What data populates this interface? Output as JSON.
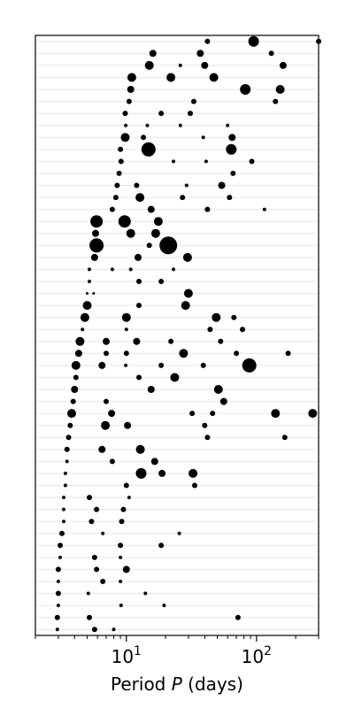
{
  "chart_data": {
    "type": "scatter",
    "xlabel_prefix": "Period ",
    "xlabel_var": "P",
    "xlabel_suffix": " (days)",
    "x_scale": "log",
    "xlim": [
      2.0,
      300
    ],
    "row_count": 50,
    "grid": "horizontal-rows",
    "x_ticks": [
      {
        "value": 10,
        "base": "10",
        "exp": "1"
      },
      {
        "value": 100,
        "base": "10",
        "exp": "2"
      }
    ],
    "points": [
      {
        "x": 42,
        "row": 1,
        "size": 3
      },
      {
        "x": 95,
        "row": 1,
        "size": 6
      },
      {
        "x": 300,
        "row": 1,
        "size": 3
      },
      {
        "x": 16,
        "row": 2,
        "size": 4
      },
      {
        "x": 37,
        "row": 2,
        "size": 4
      },
      {
        "x": 130,
        "row": 2,
        "size": 3
      },
      {
        "x": 15,
        "row": 3,
        "size": 5
      },
      {
        "x": 26,
        "row": 3,
        "size": 2
      },
      {
        "x": 40,
        "row": 3,
        "size": 4
      },
      {
        "x": 160,
        "row": 3,
        "size": 4
      },
      {
        "x": 11,
        "row": 4,
        "size": 5
      },
      {
        "x": 22,
        "row": 4,
        "size": 5
      },
      {
        "x": 47,
        "row": 4,
        "size": 5
      },
      {
        "x": 10.8,
        "row": 5,
        "size": 4
      },
      {
        "x": 82,
        "row": 5,
        "size": 6
      },
      {
        "x": 152,
        "row": 5,
        "size": 5
      },
      {
        "x": 10.5,
        "row": 6,
        "size": 3
      },
      {
        "x": 33,
        "row": 6,
        "size": 3
      },
      {
        "x": 140,
        "row": 6,
        "size": 3
      },
      {
        "x": 9.8,
        "row": 7,
        "size": 3
      },
      {
        "x": 18.5,
        "row": 7,
        "size": 3
      },
      {
        "x": 31,
        "row": 7,
        "size": 3
      },
      {
        "x": 9.9,
        "row": 8,
        "size": 2
      },
      {
        "x": 14.5,
        "row": 8,
        "size": 2
      },
      {
        "x": 26,
        "row": 8,
        "size": 2
      },
      {
        "x": 60,
        "row": 8,
        "size": 2
      },
      {
        "x": 9.8,
        "row": 9,
        "size": 5
      },
      {
        "x": 13.5,
        "row": 9,
        "size": 3
      },
      {
        "x": 39,
        "row": 9,
        "size": 2
      },
      {
        "x": 65,
        "row": 9,
        "size": 4
      },
      {
        "x": 9.0,
        "row": 10,
        "size": 3
      },
      {
        "x": 14.8,
        "row": 10,
        "size": 8
      },
      {
        "x": 64,
        "row": 10,
        "size": 6
      },
      {
        "x": 9.1,
        "row": 11,
        "size": 3
      },
      {
        "x": 23,
        "row": 11,
        "size": 2
      },
      {
        "x": 41,
        "row": 11,
        "size": 2
      },
      {
        "x": 92,
        "row": 11,
        "size": 3
      },
      {
        "x": 8.8,
        "row": 12,
        "size": 3
      },
      {
        "x": 66,
        "row": 12,
        "size": 3
      },
      {
        "x": 8.5,
        "row": 13,
        "size": 3
      },
      {
        "x": 12,
        "row": 13,
        "size": 3
      },
      {
        "x": 29,
        "row": 13,
        "size": 2
      },
      {
        "x": 54,
        "row": 13,
        "size": 4
      },
      {
        "x": 8.3,
        "row": 14,
        "size": 3
      },
      {
        "x": 12.7,
        "row": 14,
        "size": 5
      },
      {
        "x": 27,
        "row": 14,
        "size": 3
      },
      {
        "x": 62,
        "row": 14,
        "size": 3
      },
      {
        "x": 7.8,
        "row": 15,
        "size": 3
      },
      {
        "x": 15.5,
        "row": 15,
        "size": 4
      },
      {
        "x": 42,
        "row": 15,
        "size": 3
      },
      {
        "x": 115,
        "row": 15,
        "size": 2
      },
      {
        "x": 5.9,
        "row": 16,
        "size": 7
      },
      {
        "x": 9.7,
        "row": 16,
        "size": 7
      },
      {
        "x": 17.6,
        "row": 16,
        "size": 5
      },
      {
        "x": 5.8,
        "row": 17,
        "size": 4
      },
      {
        "x": 10.8,
        "row": 17,
        "size": 5
      },
      {
        "x": 16.8,
        "row": 17,
        "size": 5
      },
      {
        "x": 5.9,
        "row": 18,
        "size": 8
      },
      {
        "x": 15,
        "row": 18,
        "size": 3
      },
      {
        "x": 21,
        "row": 18,
        "size": 10
      },
      {
        "x": 5.7,
        "row": 19,
        "size": 4
      },
      {
        "x": 12.3,
        "row": 19,
        "size": 4
      },
      {
        "x": 29.5,
        "row": 19,
        "size": 5
      },
      {
        "x": 5.2,
        "row": 20,
        "size": 2
      },
      {
        "x": 7.8,
        "row": 20,
        "size": 2
      },
      {
        "x": 10.8,
        "row": 20,
        "size": 2
      },
      {
        "x": 23,
        "row": 20,
        "size": 2
      },
      {
        "x": 5.2,
        "row": 21,
        "size": 2
      },
      {
        "x": 12.5,
        "row": 21,
        "size": 3
      },
      {
        "x": 18.5,
        "row": 21,
        "size": 3
      },
      {
        "x": 5.0,
        "row": 22,
        "size": 1.5
      },
      {
        "x": 5.6,
        "row": 22,
        "size": 1.5
      },
      {
        "x": 30,
        "row": 22,
        "size": 5
      },
      {
        "x": 5.0,
        "row": 23,
        "size": 5
      },
      {
        "x": 12.5,
        "row": 23,
        "size": 3
      },
      {
        "x": 28.5,
        "row": 23,
        "size": 5
      },
      {
        "x": 4.8,
        "row": 24,
        "size": 5
      },
      {
        "x": 10,
        "row": 24,
        "size": 5
      },
      {
        "x": 49,
        "row": 24,
        "size": 5
      },
      {
        "x": 67,
        "row": 24,
        "size": 3
      },
      {
        "x": 4.6,
        "row": 25,
        "size": 2
      },
      {
        "x": 10,
        "row": 25,
        "size": 2
      },
      {
        "x": 44,
        "row": 25,
        "size": 3
      },
      {
        "x": 78,
        "row": 25,
        "size": 3
      },
      {
        "x": 4.4,
        "row": 26,
        "size": 5
      },
      {
        "x": 7.0,
        "row": 26,
        "size": 4
      },
      {
        "x": 12,
        "row": 26,
        "size": 4
      },
      {
        "x": 22,
        "row": 26,
        "size": 3
      },
      {
        "x": 53,
        "row": 26,
        "size": 3
      },
      {
        "x": 4.3,
        "row": 27,
        "size": 4
      },
      {
        "x": 7.0,
        "row": 27,
        "size": 3
      },
      {
        "x": 10,
        "row": 27,
        "size": 3
      },
      {
        "x": 27.5,
        "row": 27,
        "size": 5
      },
      {
        "x": 70,
        "row": 27,
        "size": 3
      },
      {
        "x": 175,
        "row": 27,
        "size": 3
      },
      {
        "x": 4.1,
        "row": 28,
        "size": 5
      },
      {
        "x": 6.5,
        "row": 28,
        "size": 4
      },
      {
        "x": 9.9,
        "row": 28,
        "size": 2
      },
      {
        "x": 18.5,
        "row": 28,
        "size": 3
      },
      {
        "x": 39,
        "row": 28,
        "size": 3
      },
      {
        "x": 88,
        "row": 28,
        "size": 8
      },
      {
        "x": 4.1,
        "row": 29,
        "size": 3
      },
      {
        "x": 12.5,
        "row": 29,
        "size": 3
      },
      {
        "x": 23.5,
        "row": 29,
        "size": 5
      },
      {
        "x": 4.0,
        "row": 30,
        "size": 4
      },
      {
        "x": 15.5,
        "row": 30,
        "size": 4
      },
      {
        "x": 51,
        "row": 30,
        "size": 5
      },
      {
        "x": 3.9,
        "row": 31,
        "size": 3
      },
      {
        "x": 7.0,
        "row": 31,
        "size": 3
      },
      {
        "x": 56,
        "row": 31,
        "size": 4
      },
      {
        "x": 3.8,
        "row": 32,
        "size": 5
      },
      {
        "x": 7.7,
        "row": 32,
        "size": 4
      },
      {
        "x": 32,
        "row": 32,
        "size": 3
      },
      {
        "x": 46,
        "row": 32,
        "size": 3
      },
      {
        "x": 140,
        "row": 32,
        "size": 5
      },
      {
        "x": 270,
        "row": 32,
        "size": 5
      },
      {
        "x": 3.7,
        "row": 33,
        "size": 3
      },
      {
        "x": 6.9,
        "row": 33,
        "size": 5
      },
      {
        "x": 10.2,
        "row": 33,
        "size": 4
      },
      {
        "x": 40,
        "row": 33,
        "size": 3
      },
      {
        "x": 3.6,
        "row": 34,
        "size": 3
      },
      {
        "x": 42,
        "row": 34,
        "size": 3
      },
      {
        "x": 165,
        "row": 34,
        "size": 3
      },
      {
        "x": 3.5,
        "row": 35,
        "size": 3
      },
      {
        "x": 6.5,
        "row": 35,
        "size": 4
      },
      {
        "x": 12.8,
        "row": 35,
        "size": 5
      },
      {
        "x": 3.5,
        "row": 36,
        "size": 2
      },
      {
        "x": 7.8,
        "row": 36,
        "size": 3
      },
      {
        "x": 16.5,
        "row": 36,
        "size": 4
      },
      {
        "x": 3.4,
        "row": 37,
        "size": 2
      },
      {
        "x": 13,
        "row": 37,
        "size": 6
      },
      {
        "x": 18.8,
        "row": 37,
        "size": 4
      },
      {
        "x": 32.5,
        "row": 37,
        "size": 5
      },
      {
        "x": 3.4,
        "row": 38,
        "size": 2
      },
      {
        "x": 10,
        "row": 38,
        "size": 3
      },
      {
        "x": 33.5,
        "row": 38,
        "size": 3
      },
      {
        "x": 3.3,
        "row": 39,
        "size": 2
      },
      {
        "x": 5.2,
        "row": 39,
        "size": 3
      },
      {
        "x": 10.5,
        "row": 39,
        "size": 2
      },
      {
        "x": 3.3,
        "row": 40,
        "size": 2
      },
      {
        "x": 5.9,
        "row": 40,
        "size": 3
      },
      {
        "x": 9.5,
        "row": 40,
        "size": 3
      },
      {
        "x": 3.3,
        "row": 41,
        "size": 2
      },
      {
        "x": 5.4,
        "row": 41,
        "size": 3
      },
      {
        "x": 9.2,
        "row": 41,
        "size": 3
      },
      {
        "x": 3.2,
        "row": 42,
        "size": 3
      },
      {
        "x": 6.6,
        "row": 42,
        "size": 2
      },
      {
        "x": 25.5,
        "row": 42,
        "size": 2
      },
      {
        "x": 3.1,
        "row": 43,
        "size": 3
      },
      {
        "x": 9.0,
        "row": 43,
        "size": 3
      },
      {
        "x": 18.5,
        "row": 43,
        "size": 3
      },
      {
        "x": 3.1,
        "row": 44,
        "size": 2
      },
      {
        "x": 5.7,
        "row": 44,
        "size": 3
      },
      {
        "x": 9.0,
        "row": 44,
        "size": 2
      },
      {
        "x": 3.0,
        "row": 45,
        "size": 3
      },
      {
        "x": 5.9,
        "row": 45,
        "size": 3
      },
      {
        "x": 10,
        "row": 45,
        "size": 4
      },
      {
        "x": 3.0,
        "row": 46,
        "size": 2
      },
      {
        "x": 6.6,
        "row": 46,
        "size": 3
      },
      {
        "x": 9.0,
        "row": 46,
        "size": 2
      },
      {
        "x": 3.0,
        "row": 47,
        "size": 3
      },
      {
        "x": 5.1,
        "row": 47,
        "size": 2
      },
      {
        "x": 14,
        "row": 47,
        "size": 2
      },
      {
        "x": 3.0,
        "row": 48,
        "size": 2
      },
      {
        "x": 9.1,
        "row": 48,
        "size": 2
      },
      {
        "x": 19.5,
        "row": 48,
        "size": 2
      },
      {
        "x": 2.95,
        "row": 49,
        "size": 3
      },
      {
        "x": 5.2,
        "row": 49,
        "size": 3
      },
      {
        "x": 72,
        "row": 49,
        "size": 3
      },
      {
        "x": 2.95,
        "row": 50,
        "size": 2
      },
      {
        "x": 5.7,
        "row": 50,
        "size": 3
      },
      {
        "x": 8.0,
        "row": 50,
        "size": 2
      }
    ]
  }
}
